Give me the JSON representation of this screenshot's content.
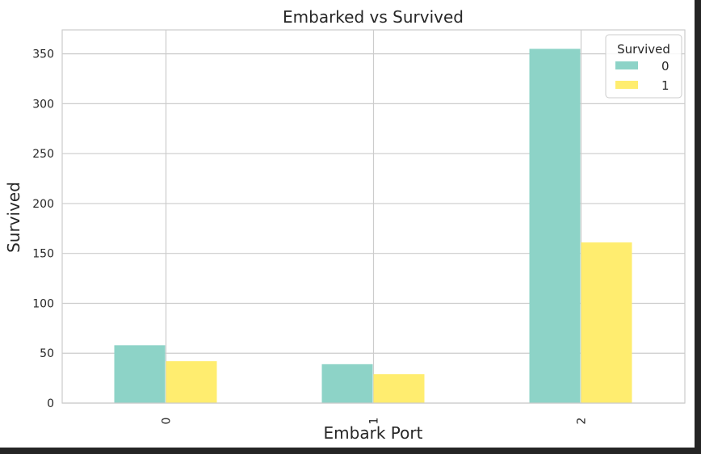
{
  "chart_data": {
    "type": "bar",
    "title": "Embarked vs Survived",
    "xlabel": "Embark Port",
    "ylabel": "Survived",
    "categories": [
      "0",
      "1",
      "2"
    ],
    "series": [
      {
        "name": "0",
        "values": [
          58,
          39,
          355
        ],
        "color": "#8dd3c7"
      },
      {
        "name": "1",
        "values": [
          42,
          29,
          161
        ],
        "color": "#ffed6f"
      }
    ],
    "ylim": [
      0,
      374
    ],
    "yticks": [
      0,
      50,
      100,
      150,
      200,
      250,
      300,
      350
    ],
    "grid": true,
    "legend": {
      "title": "Survived",
      "placement": "top-right"
    }
  }
}
